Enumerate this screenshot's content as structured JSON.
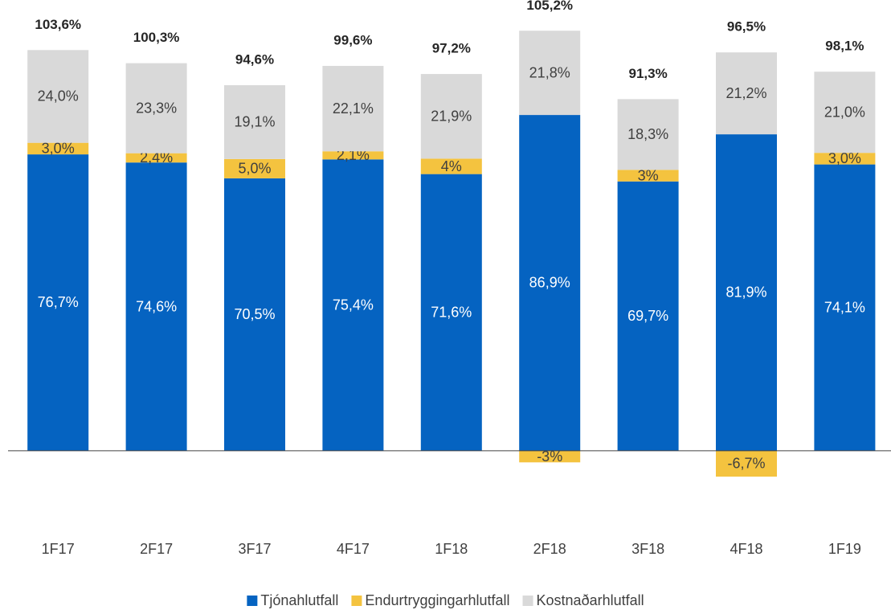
{
  "chart_data": {
    "type": "bar",
    "stacked": true,
    "categories": [
      "1F17",
      "2F17",
      "3F17",
      "4F17",
      "1F18",
      "2F18",
      "3F18",
      "4F18",
      "1F19"
    ],
    "series": [
      {
        "name": "Tjónahlutfall",
        "color": "#0563c1",
        "values": [
          76.7,
          74.6,
          70.5,
          75.4,
          71.6,
          86.9,
          69.7,
          81.9,
          74.1
        ],
        "value_labels": [
          "76,7%",
          "74,6%",
          "70,5%",
          "75,4%",
          "71,6%",
          "86,9%",
          "69,7%",
          "81,9%",
          "74,1%"
        ]
      },
      {
        "name": "Endurtryggingarhlutfall",
        "color": "#f4c33f",
        "values": [
          3.0,
          2.4,
          5.0,
          2.1,
          4,
          -3,
          3,
          -6.7,
          3.0
        ],
        "value_labels": [
          "3,0%",
          "2,4%",
          "5,0%",
          "2,1%",
          "4%",
          "-3%",
          "3%",
          "-6,7%",
          "3,0%"
        ]
      },
      {
        "name": "Kostnaðarhlutfall",
        "color": "#d9d9d9",
        "values": [
          24.0,
          23.3,
          19.1,
          22.1,
          21.9,
          21.8,
          18.3,
          21.2,
          21.0
        ],
        "value_labels": [
          "24,0%",
          "23,3%",
          "19,1%",
          "22,1%",
          "21,9%",
          "21,8%",
          "18,3%",
          "21,2%",
          "21,0%"
        ]
      }
    ],
    "totals": {
      "values": [
        103.6,
        100.3,
        94.6,
        99.6,
        97.2,
        105.2,
        91.3,
        96.5,
        98.1
      ],
      "value_labels": [
        "103,6%",
        "100,3%",
        "94,6%",
        "99,6%",
        "97,2%",
        "105,2%",
        "91,3%",
        "96,5%",
        "98,1%"
      ]
    },
    "ylim": [
      -15,
      110
    ],
    "legend": "bottom"
  }
}
